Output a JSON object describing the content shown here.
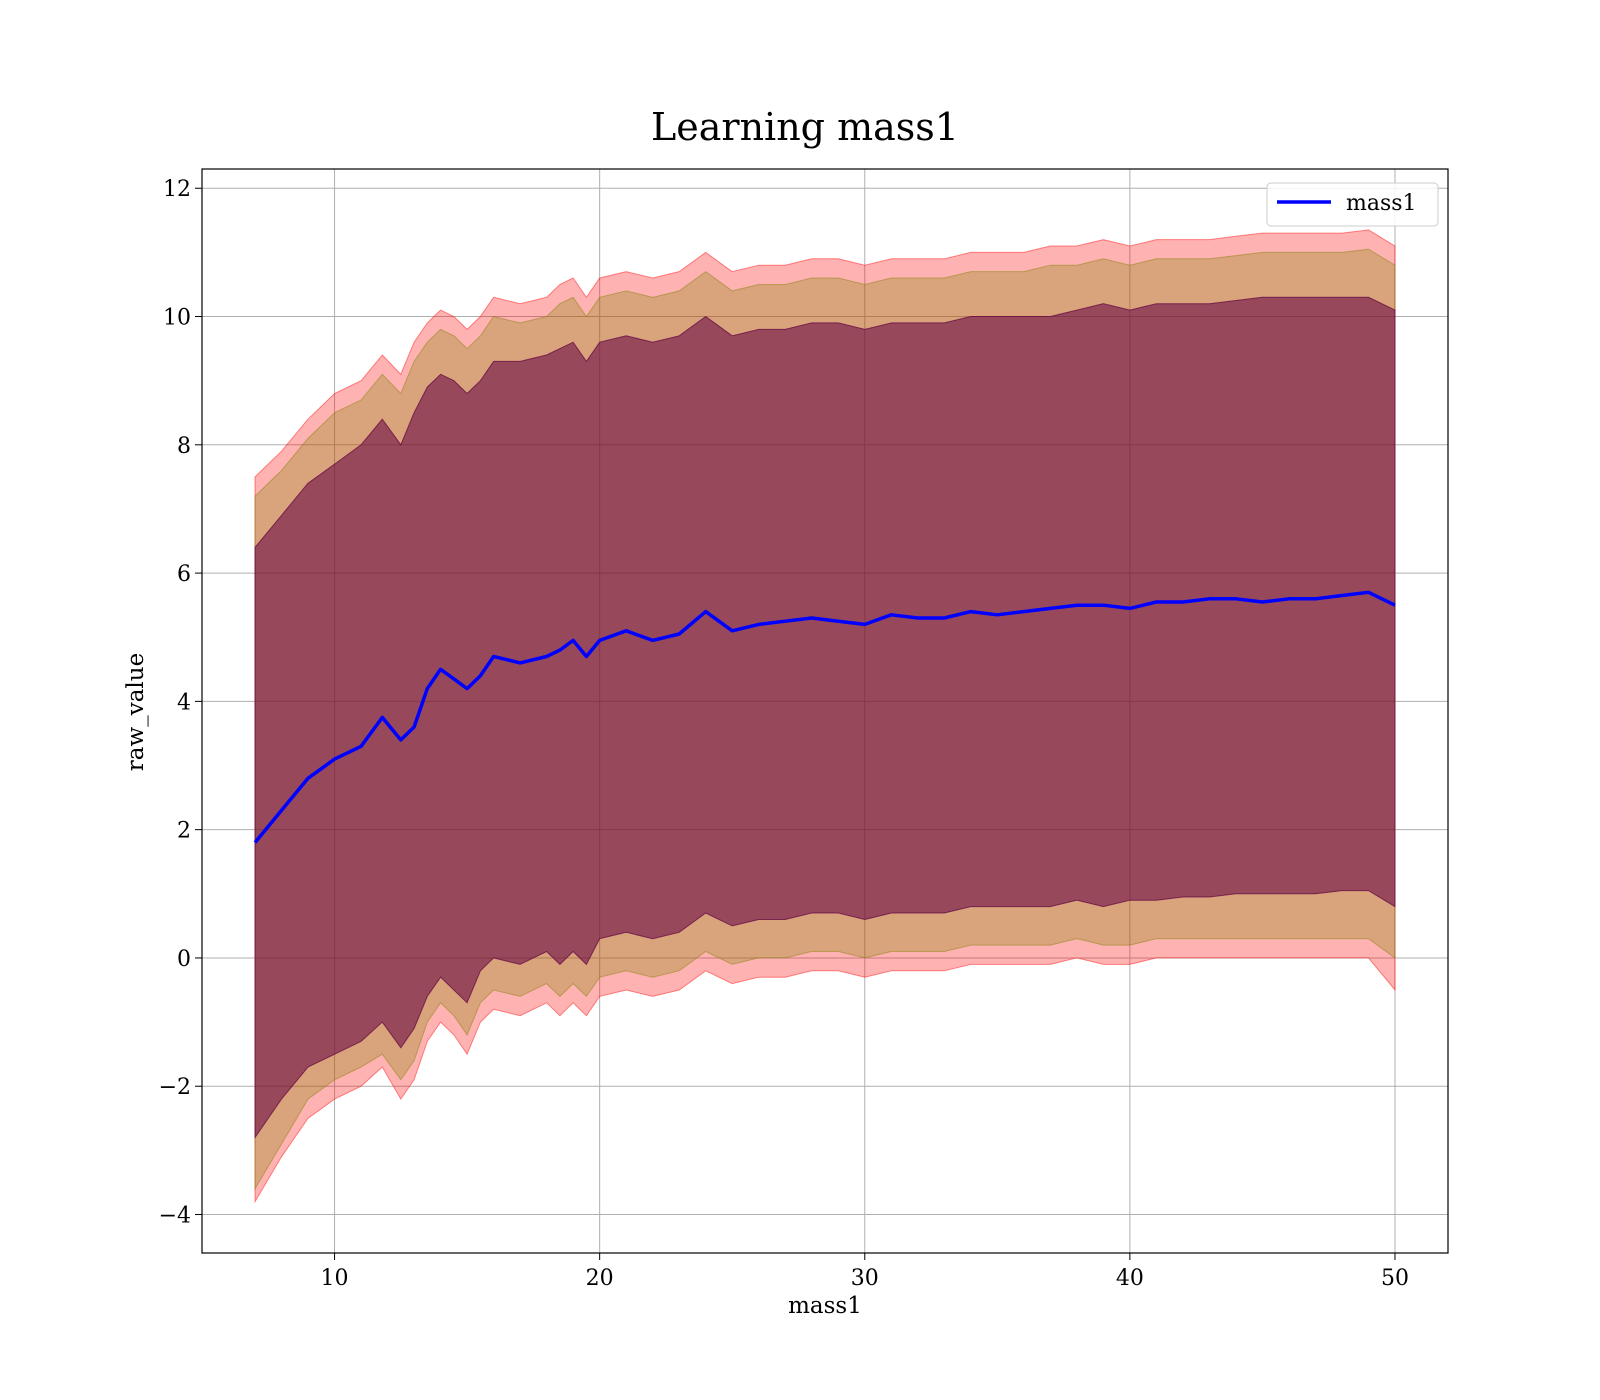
{
  "chart_data": {
    "type": "area",
    "title": "Learning mass1",
    "xlabel": "mass1",
    "ylabel": "raw_value",
    "xlim": [
      5,
      52
    ],
    "ylim": [
      -4.6,
      12.3
    ],
    "xticks": [
      10,
      20,
      30,
      40,
      50
    ],
    "yticks": [
      -4,
      -2,
      0,
      2,
      4,
      6,
      8,
      10,
      12
    ],
    "xtick_labels": [
      "10",
      "20",
      "30",
      "40",
      "50"
    ],
    "ytick_labels": [
      "−4",
      "−2",
      "0",
      "2",
      "4",
      "6",
      "8",
      "10",
      "12"
    ],
    "grid": true,
    "legend": {
      "position": "top-right",
      "entries": [
        "mass1"
      ]
    },
    "x": [
      7.0,
      8.0,
      9.0,
      10.0,
      11.0,
      11.8,
      12.5,
      13.0,
      13.5,
      14.0,
      14.5,
      15.0,
      15.5,
      16.0,
      17.0,
      18.0,
      18.5,
      19.0,
      19.5,
      20.0,
      21.0,
      22.0,
      23.0,
      24.0,
      25.0,
      26.0,
      27.0,
      28.0,
      29.0,
      30.0,
      31.0,
      32.0,
      33.0,
      34.0,
      35.0,
      36.0,
      37.0,
      38.0,
      39.0,
      40.0,
      41.0,
      42.0,
      43.0,
      44.0,
      45.0,
      46.0,
      47.0,
      48.0,
      49.0,
      50.0
    ],
    "series": [
      {
        "name": "mass1",
        "color": "#0000ff",
        "values": [
          1.8,
          2.3,
          2.8,
          3.1,
          3.3,
          3.75,
          3.4,
          3.6,
          4.2,
          4.5,
          4.35,
          4.2,
          4.4,
          4.7,
          4.6,
          4.7,
          4.8,
          4.95,
          4.7,
          4.95,
          5.1,
          4.95,
          5.05,
          5.4,
          5.1,
          5.2,
          5.25,
          5.3,
          5.25,
          5.2,
          5.35,
          5.3,
          5.3,
          5.4,
          5.35,
          5.4,
          5.45,
          5.5,
          5.5,
          5.45,
          5.55,
          5.55,
          5.6,
          5.6,
          5.55,
          5.6,
          5.6,
          5.65,
          5.7,
          5.5
        ]
      }
    ],
    "bands": [
      {
        "color": "#ff0000",
        "opacity": 0.3,
        "lower": [
          -3.8,
          -3.1,
          -2.5,
          -2.2,
          -2.0,
          -1.7,
          -2.2,
          -1.9,
          -1.3,
          -1.0,
          -1.2,
          -1.5,
          -1.0,
          -0.8,
          -0.9,
          -0.7,
          -0.9,
          -0.7,
          -0.9,
          -0.6,
          -0.5,
          -0.6,
          -0.5,
          -0.2,
          -0.4,
          -0.3,
          -0.3,
          -0.2,
          -0.2,
          -0.3,
          -0.2,
          -0.2,
          -0.2,
          -0.1,
          -0.1,
          -0.1,
          -0.1,
          0.0,
          -0.1,
          -0.1,
          0.0,
          0.0,
          0.0,
          0.0,
          0.0,
          0.0,
          0.0,
          0.0,
          0.0,
          -0.5
        ],
        "upper": [
          7.5,
          7.9,
          8.4,
          8.8,
          9.0,
          9.4,
          9.1,
          9.6,
          9.9,
          10.1,
          10.0,
          9.8,
          10.0,
          10.3,
          10.2,
          10.3,
          10.5,
          10.6,
          10.3,
          10.6,
          10.7,
          10.6,
          10.7,
          11.0,
          10.7,
          10.8,
          10.8,
          10.9,
          10.9,
          10.8,
          10.9,
          10.9,
          10.9,
          11.0,
          11.0,
          11.0,
          11.1,
          11.1,
          11.2,
          11.1,
          11.2,
          11.2,
          11.2,
          11.25,
          11.3,
          11.3,
          11.3,
          11.3,
          11.35,
          11.1
        ]
      },
      {
        "color": "#808000",
        "opacity": 0.3,
        "lower": [
          -3.6,
          -2.9,
          -2.2,
          -1.9,
          -1.7,
          -1.5,
          -1.9,
          -1.6,
          -1.0,
          -0.7,
          -0.9,
          -1.2,
          -0.7,
          -0.5,
          -0.6,
          -0.4,
          -0.6,
          -0.4,
          -0.6,
          -0.3,
          -0.2,
          -0.3,
          -0.2,
          0.1,
          -0.1,
          0.0,
          0.0,
          0.1,
          0.1,
          0.0,
          0.1,
          0.1,
          0.1,
          0.2,
          0.2,
          0.2,
          0.2,
          0.3,
          0.2,
          0.2,
          0.3,
          0.3,
          0.3,
          0.3,
          0.3,
          0.3,
          0.3,
          0.3,
          0.3,
          0.0
        ],
        "upper": [
          7.2,
          7.6,
          8.1,
          8.5,
          8.7,
          9.1,
          8.8,
          9.3,
          9.6,
          9.8,
          9.7,
          9.5,
          9.7,
          10.0,
          9.9,
          10.0,
          10.2,
          10.3,
          10.0,
          10.3,
          10.4,
          10.3,
          10.4,
          10.7,
          10.4,
          10.5,
          10.5,
          10.6,
          10.6,
          10.5,
          10.6,
          10.6,
          10.6,
          10.7,
          10.7,
          10.7,
          10.8,
          10.8,
          10.9,
          10.8,
          10.9,
          10.9,
          10.9,
          10.95,
          11.0,
          11.0,
          11.0,
          11.0,
          11.05,
          10.8
        ]
      },
      {
        "color": "#600040",
        "opacity": 0.55,
        "lower": [
          -2.8,
          -2.2,
          -1.7,
          -1.5,
          -1.3,
          -1.0,
          -1.4,
          -1.1,
          -0.6,
          -0.3,
          -0.5,
          -0.7,
          -0.2,
          0.0,
          -0.1,
          0.1,
          -0.1,
          0.1,
          -0.1,
          0.3,
          0.4,
          0.3,
          0.4,
          0.7,
          0.5,
          0.6,
          0.6,
          0.7,
          0.7,
          0.6,
          0.7,
          0.7,
          0.7,
          0.8,
          0.8,
          0.8,
          0.8,
          0.9,
          0.8,
          0.9,
          0.9,
          0.95,
          0.95,
          1.0,
          1.0,
          1.0,
          1.0,
          1.05,
          1.05,
          0.8
        ],
        "upper": [
          6.4,
          6.9,
          7.4,
          7.7,
          8.0,
          8.4,
          8.0,
          8.5,
          8.9,
          9.1,
          9.0,
          8.8,
          9.0,
          9.3,
          9.3,
          9.4,
          9.5,
          9.6,
          9.3,
          9.6,
          9.7,
          9.6,
          9.7,
          10.0,
          9.7,
          9.8,
          9.8,
          9.9,
          9.9,
          9.8,
          9.9,
          9.9,
          9.9,
          10.0,
          10.0,
          10.0,
          10.0,
          10.1,
          10.2,
          10.1,
          10.2,
          10.2,
          10.2,
          10.25,
          10.3,
          10.3,
          10.3,
          10.3,
          10.3,
          10.1
        ]
      }
    ]
  }
}
